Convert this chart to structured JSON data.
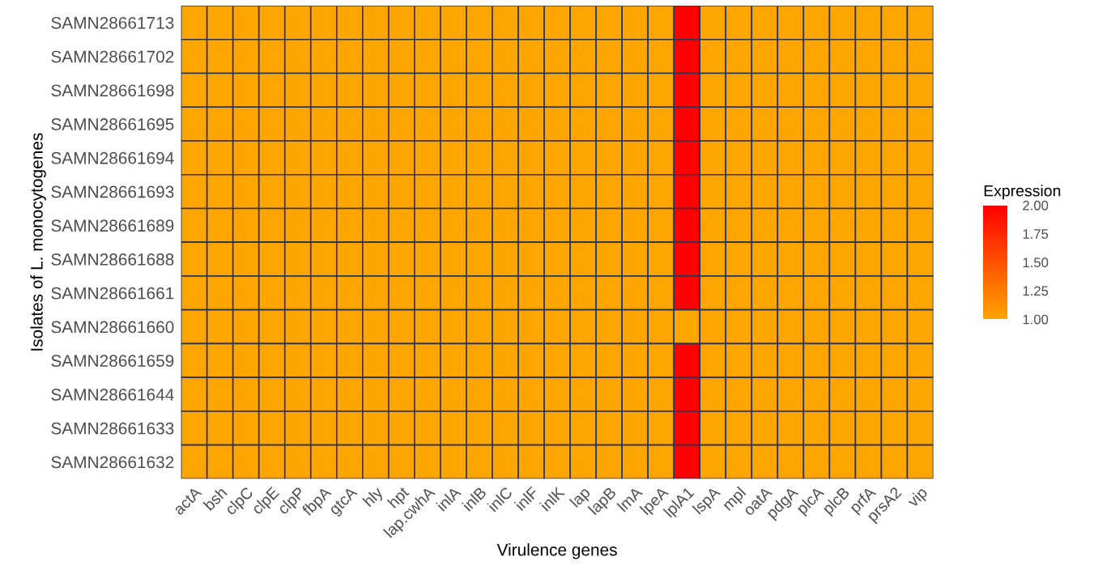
{
  "chart_data": {
    "type": "heatmap",
    "xlabel": "Virulence genes",
    "ylabel": "Isolates of L. monocytogenes",
    "clabel": "Expression",
    "categories": [
      "actA",
      "bsh",
      "clpC",
      "clpE",
      "clpP",
      "fbpA",
      "gtcA",
      "hly",
      "hpt",
      "lap.cwhA",
      "inlA",
      "inlB",
      "inlC",
      "inlF",
      "inlK",
      "lap",
      "lapB",
      "lmA",
      "lpeA",
      "lplA1",
      "lspA",
      "mpl",
      "oatA",
      "pdgA",
      "plcA",
      "plcB",
      "prfA",
      "prsA2",
      "vip"
    ],
    "y_categories": [
      "SAMN28661713",
      "SAMN28661702",
      "SAMN28661698",
      "SAMN28661695",
      "SAMN28661694",
      "SAMN28661693",
      "SAMN28661689",
      "SAMN28661688",
      "SAMN28661661",
      "SAMN28661660",
      "SAMN28661659",
      "SAMN28661644",
      "SAMN28661633",
      "SAMN28661632"
    ],
    "cells": [
      [
        1,
        1,
        1,
        1,
        1,
        1,
        1,
        1,
        1,
        1,
        1,
        1,
        1,
        1,
        1,
        1,
        1,
        1,
        1,
        2,
        1,
        1,
        1,
        1,
        1,
        1,
        1,
        1,
        1
      ],
      [
        1,
        1,
        1,
        1,
        1,
        1,
        1,
        1,
        1,
        1,
        1,
        1,
        1,
        1,
        1,
        1,
        1,
        1,
        1,
        2,
        1,
        1,
        1,
        1,
        1,
        1,
        1,
        1,
        1
      ],
      [
        1,
        1,
        1,
        1,
        1,
        1,
        1,
        1,
        1,
        1,
        1,
        1,
        1,
        1,
        1,
        1,
        1,
        1,
        1,
        2,
        1,
        1,
        1,
        1,
        1,
        1,
        1,
        1,
        1
      ],
      [
        1,
        1,
        1,
        1,
        1,
        1,
        1,
        1,
        1,
        1,
        1,
        1,
        1,
        1,
        1,
        1,
        1,
        1,
        1,
        2,
        1,
        1,
        1,
        1,
        1,
        1,
        1,
        1,
        1
      ],
      [
        1,
        1,
        1,
        1,
        1,
        1,
        1,
        1,
        1,
        1,
        1,
        1,
        1,
        1,
        1,
        1,
        1,
        1,
        1,
        2,
        1,
        1,
        1,
        1,
        1,
        1,
        1,
        1,
        1
      ],
      [
        1,
        1,
        1,
        1,
        1,
        1,
        1,
        1,
        1,
        1,
        1,
        1,
        1,
        1,
        1,
        1,
        1,
        1,
        1,
        2,
        1,
        1,
        1,
        1,
        1,
        1,
        1,
        1,
        1
      ],
      [
        1,
        1,
        1,
        1,
        1,
        1,
        1,
        1,
        1,
        1,
        1,
        1,
        1,
        1,
        1,
        1,
        1,
        1,
        1,
        2,
        1,
        1,
        1,
        1,
        1,
        1,
        1,
        1,
        1
      ],
      [
        1,
        1,
        1,
        1,
        1,
        1,
        1,
        1,
        1,
        1,
        1,
        1,
        1,
        1,
        1,
        1,
        1,
        1,
        1,
        2,
        1,
        1,
        1,
        1,
        1,
        1,
        1,
        1,
        1
      ],
      [
        1,
        1,
        1,
        1,
        1,
        1,
        1,
        1,
        1,
        1,
        1,
        1,
        1,
        1,
        1,
        1,
        1,
        1,
        1,
        2,
        1,
        1,
        1,
        1,
        1,
        1,
        1,
        1,
        1
      ],
      [
        1,
        1,
        1,
        1,
        1,
        1,
        1,
        1,
        1,
        1,
        1,
        1,
        1,
        1,
        1,
        1,
        1,
        1,
        1,
        1,
        1,
        1,
        1,
        1,
        1,
        1,
        1,
        1,
        1
      ],
      [
        1,
        1,
        1,
        1,
        1,
        1,
        1,
        1,
        1,
        1,
        1,
        1,
        1,
        1,
        1,
        1,
        1,
        1,
        1,
        2,
        1,
        1,
        1,
        1,
        1,
        1,
        1,
        1,
        1
      ],
      [
        1,
        1,
        1,
        1,
        1,
        1,
        1,
        1,
        1,
        1,
        1,
        1,
        1,
        1,
        1,
        1,
        1,
        1,
        1,
        2,
        1,
        1,
        1,
        1,
        1,
        1,
        1,
        1,
        1
      ],
      [
        1,
        1,
        1,
        1,
        1,
        1,
        1,
        1,
        1,
        1,
        1,
        1,
        1,
        1,
        1,
        1,
        1,
        1,
        1,
        2,
        1,
        1,
        1,
        1,
        1,
        1,
        1,
        1,
        1
      ],
      [
        1,
        1,
        1,
        1,
        1,
        1,
        1,
        1,
        1,
        1,
        1,
        1,
        1,
        1,
        1,
        1,
        1,
        1,
        1,
        2,
        1,
        1,
        1,
        1,
        1,
        1,
        1,
        1,
        1
      ]
    ],
    "clim": [
      1,
      2
    ],
    "cticks": [
      {
        "value": 1,
        "label": "1.00"
      },
      {
        "value": 1.25,
        "label": "1.25"
      },
      {
        "value": 1.5,
        "label": "1.50"
      },
      {
        "value": 1.75,
        "label": "1.75"
      },
      {
        "value": 2,
        "label": "2.00"
      }
    ],
    "colors": [
      "#ffa500",
      "#ff0000"
    ]
  }
}
